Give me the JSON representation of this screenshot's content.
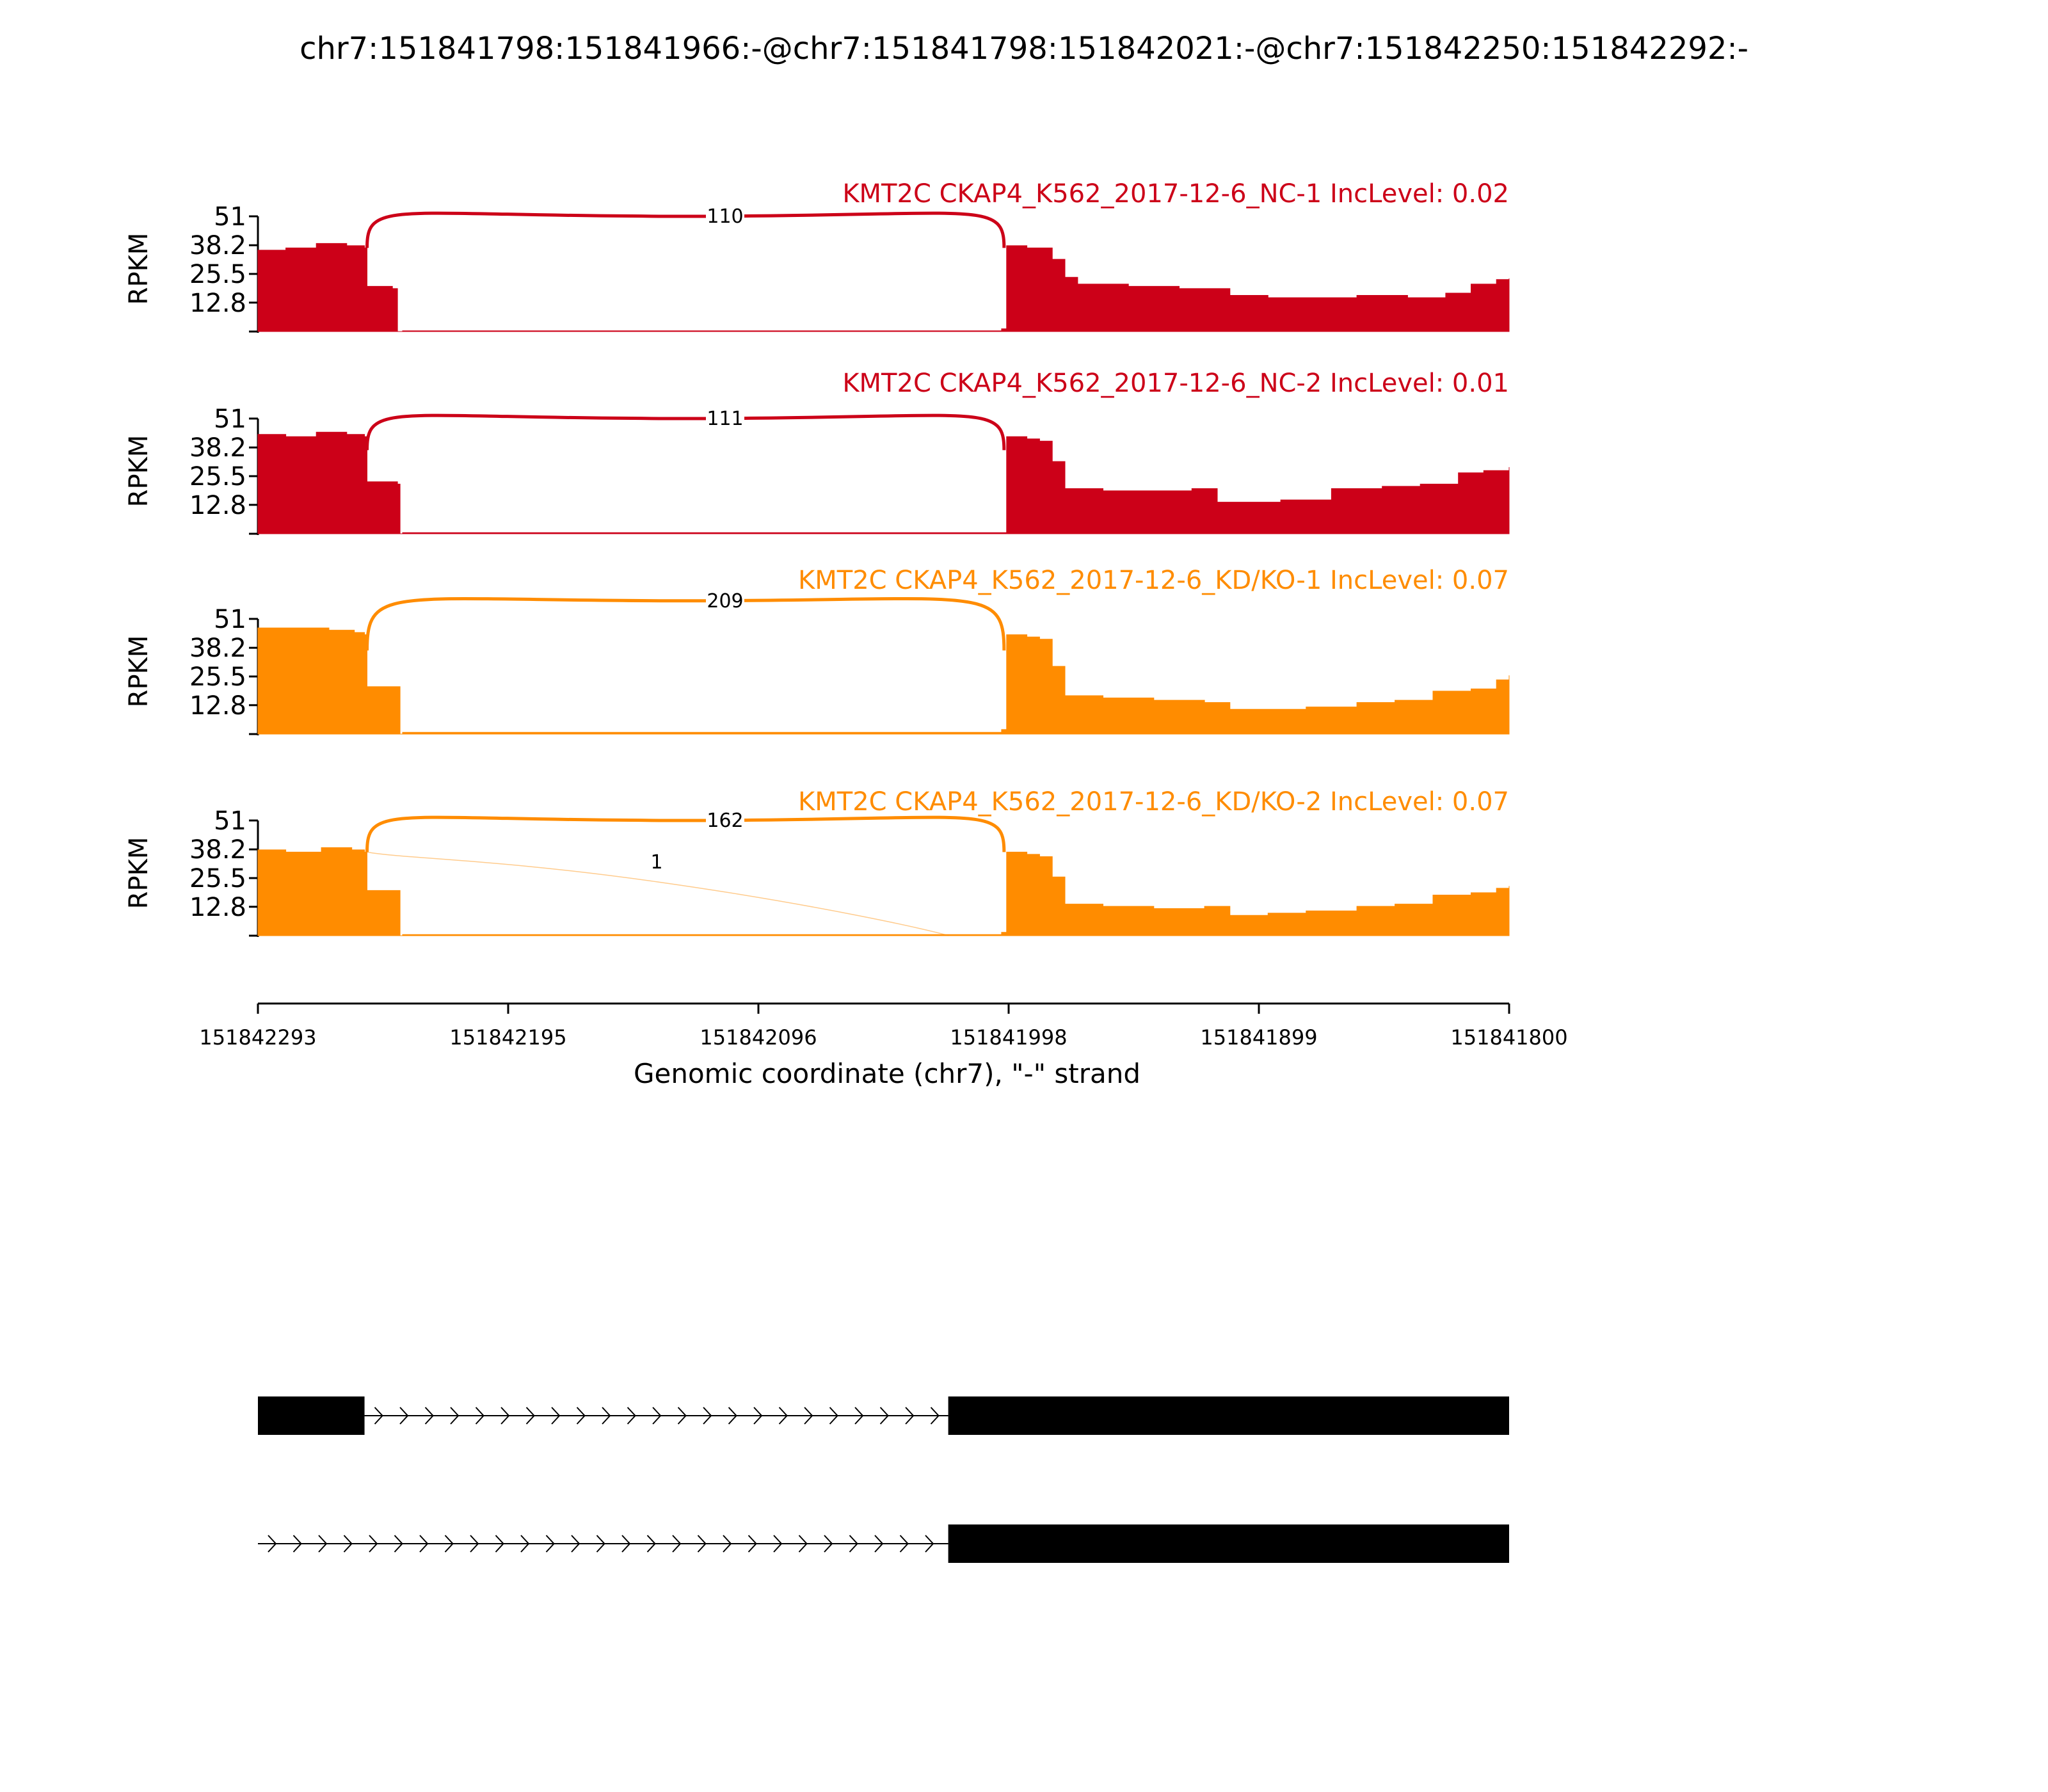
{
  "chart_data": {
    "type": "area",
    "title": "chr7:151841798:151841966:-@chr7:151841798:151842021:-@chr7:151842250:151842292:-",
    "xlabel": "Genomic coordinate (chr7), \"-\" strand",
    "ylabel": "RPKM",
    "xlim": [
      151842293,
      151841800
    ],
    "x_ticks": [
      "151842293",
      "151842195",
      "151842096",
      "151841998",
      "151841899",
      "151841800"
    ],
    "ylim": [
      0,
      51
    ],
    "y_ticks": [
      "51",
      "38.2",
      "25.5",
      "12.8"
    ],
    "colors": {
      "NC": "#cc0018",
      "KD": "#ff8c00",
      "gene": "#000000"
    },
    "panels": [
      {
        "title": "KMT2C CKAP4_K562_2017-12-6_NC-1 IncLevel: 0.02",
        "color": "#cc0018",
        "coverage": {
          "x": [
            151842293,
            151842282,
            151842270,
            151842258,
            151842251,
            151842250,
            151842240,
            151842238,
            151842236,
            151842000,
            151841998,
            151841990,
            151841980,
            151841975,
            151841970,
            151841965,
            151841950,
            151841930,
            151841910,
            151841895,
            151841880,
            151841860,
            151841840,
            151841825,
            151841815,
            151841805,
            151841800
          ],
          "y": [
            36,
            37,
            39,
            38,
            37,
            20,
            19,
            0,
            0.3,
            1.2,
            38,
            37,
            32,
            24,
            21,
            21,
            20,
            19,
            16,
            15,
            15,
            16,
            15,
            17,
            21,
            23,
            23.5
          ]
        },
        "junctions": [
          {
            "label": "110",
            "from": 151842250,
            "to": 151841999,
            "peak": 51
          }
        ]
      },
      {
        "title": "KMT2C CKAP4_K562_2017-12-6_NC-2 IncLevel: 0.01",
        "color": "#cc0018",
        "coverage": {
          "x": [
            151842293,
            151842282,
            151842270,
            151842258,
            151842251,
            151842250,
            151842238,
            151842237,
            151842236,
            151842000,
            151841998,
            151841990,
            151841985,
            151841980,
            151841975,
            151841960,
            151841940,
            151841925,
            151841915,
            151841900,
            151841890,
            151841870,
            151841850,
            151841835,
            151841820,
            151841810,
            151841800
          ],
          "y": [
            44,
            43,
            45,
            44,
            43,
            23,
            22,
            0,
            0.5,
            0.5,
            43,
            42,
            41,
            32,
            20,
            19,
            19,
            20,
            14,
            14,
            15,
            20,
            21,
            22,
            27,
            28,
            29.5
          ]
        },
        "junctions": [
          {
            "label": "111",
            "from": 151842250,
            "to": 151841999,
            "peak": 51
          }
        ]
      },
      {
        "title": "KMT2C CKAP4_K562_2017-12-6_KD/KO-1 IncLevel: 0.07",
        "color": "#ff8c00",
        "coverage": {
          "x": [
            151842293,
            151842280,
            151842265,
            151842255,
            151842251,
            151842250,
            151842238,
            151842237,
            151842236,
            151842000,
            151841998,
            151841990,
            151841985,
            151841980,
            151841975,
            151841960,
            151841940,
            151841920,
            151841910,
            151841895,
            151841880,
            151841860,
            151841845,
            151841830,
            151841815,
            151841805,
            151841800
          ],
          "y": [
            47,
            47,
            46,
            45,
            44,
            21,
            21,
            0,
            0.8,
            2,
            44,
            43,
            42,
            30,
            17,
            16,
            15,
            14,
            11,
            11,
            12,
            14,
            15,
            19,
            20,
            24,
            26
          ]
        },
        "junctions": [
          {
            "label": "209",
            "from": 151842250,
            "to": 151841999,
            "peak": 59
          }
        ]
      },
      {
        "title": "KMT2C CKAP4_K562_2017-12-6_KD/KO-2 IncLevel: 0.07",
        "color": "#ff8c00",
        "coverage": {
          "x": [
            151842293,
            151842282,
            151842268,
            151842256,
            151842251,
            151842250,
            151842238,
            151842237,
            151842236,
            151842000,
            151841998,
            151841990,
            151841985,
            151841980,
            151841975,
            151841960,
            151841940,
            151841920,
            151841910,
            151841895,
            151841880,
            151841860,
            151841845,
            151841830,
            151841815,
            151841805,
            151841800
          ],
          "y": [
            38,
            37,
            39,
            38,
            37,
            20,
            20,
            0,
            0.5,
            1.5,
            37,
            36,
            35,
            26,
            14,
            13,
            12,
            13,
            9,
            10,
            11,
            13,
            14,
            18,
            19,
            21,
            22
          ]
        },
        "junctions": [
          {
            "label": "162",
            "from": 151842250,
            "to": 151841999,
            "peak": 51
          },
          {
            "label": "1",
            "from": 151842250,
            "to": 151842021,
            "peak": 34
          }
        ]
      }
    ],
    "gene_models": [
      {
        "exons": [
          [
            151842293,
            151842251
          ],
          [
            151842021,
            151841800
          ]
        ],
        "introns": [
          [
            151842251,
            151842021
          ]
        ]
      },
      {
        "exons": [
          [
            151842021,
            151841800
          ]
        ],
        "introns": [
          [
            151842293,
            151842021
          ]
        ]
      }
    ]
  }
}
